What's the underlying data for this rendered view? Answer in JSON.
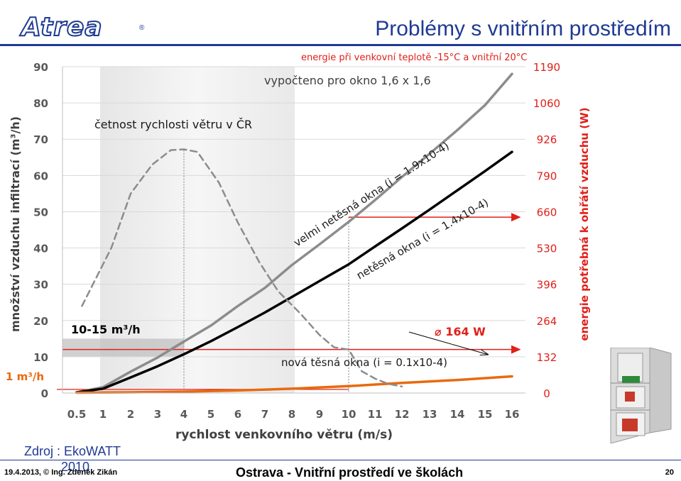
{
  "header": {
    "logo_text": "Atrea",
    "logo_mark": "®",
    "title": "Problémy s vnitřním prostředím"
  },
  "footer": {
    "source_line1": "Zdroj : EkoWATT",
    "source_line2": "2010",
    "date_author": "19.4.2013, © Ing. Zdeněk Zikán",
    "center": "Ostrava - Vnitřní prostředí ve školách",
    "page": "20"
  },
  "chart_data": {
    "type": "line",
    "title": "energie při venkovní teplotě -15°C a vnitřní 20°C",
    "subtitle": "vypočteno pro okno 1,6 x 1,6",
    "xlabel": "rychlost venkovního větru (m/s)",
    "ylabel": "množství vzduchu infiltrací (m³/h)",
    "y2label": "energie potřebná k ohřátí vzduchu (W)",
    "xlim": [
      0.5,
      16
    ],
    "ylim": [
      0,
      90
    ],
    "x_ticks": [
      "0.5",
      "1",
      "2",
      "3",
      "4",
      "5",
      "6",
      "7",
      "8",
      "9",
      "10",
      "11",
      "12",
      "13",
      "14",
      "15",
      "16"
    ],
    "y_ticks": [
      "0",
      "10",
      "20",
      "30",
      "40",
      "50",
      "60",
      "70",
      "80",
      "90"
    ],
    "y2_ticks": [
      "0",
      "132",
      "264",
      "396",
      "530",
      "660",
      "790",
      "926",
      "1060",
      "1190"
    ],
    "series": [
      {
        "name": "velmi netěsná okna (i = 1.9x10-4)",
        "color": "#8c8c8c",
        "style": "solid",
        "x": [
          0.5,
          1,
          2,
          3,
          4,
          5,
          6,
          7,
          8,
          9,
          10,
          11,
          12,
          13,
          14,
          15,
          16
        ],
        "y": [
          0.2,
          1.6,
          5.9,
          9.8,
          14.2,
          18.6,
          24.0,
          29.0,
          35.3,
          41.0,
          47.2,
          53.2,
          59.6,
          66.0,
          72.5,
          79.4,
          88.0
        ]
      },
      {
        "name": "netěsná okna (i = 1.4x10-4)",
        "color": "#000000",
        "style": "solid",
        "x": [
          0.5,
          1,
          2,
          3,
          4,
          5,
          6,
          7,
          8,
          9,
          10,
          11,
          12,
          13,
          14,
          15,
          16
        ],
        "y": [
          0.2,
          1.2,
          4.3,
          7.4,
          10.7,
          14.3,
          18.2,
          22.2,
          26.5,
          30.9,
          35.5,
          40.4,
          45.4,
          50.6,
          55.9,
          61.2,
          66.5
        ]
      },
      {
        "name": "nová těsná okna (i = 0.1x10-4)",
        "color": "#e86a10",
        "style": "solid",
        "x": [
          0.5,
          2,
          4,
          6,
          8,
          10,
          12,
          14,
          16
        ],
        "y": [
          0.1,
          0.2,
          0.4,
          0.7,
          1.2,
          1.9,
          2.8,
          3.6,
          4.6
        ]
      },
      {
        "name": "četnost rychlosti větru v ČR",
        "color": "#8c8c8c",
        "style": "dashed",
        "x": [
          0.6,
          1.3,
          2,
          2.8,
          3.5,
          4,
          4.5,
          5.3,
          6,
          6.8,
          7.5,
          8.3,
          9,
          9.5,
          10,
          10.5,
          11,
          11.5,
          12
        ],
        "y": [
          24,
          40,
          55,
          63,
          67,
          67.2,
          66.5,
          58,
          47,
          36,
          28,
          22,
          16,
          12.6,
          12,
          6,
          4,
          2.5,
          1.8
        ]
      }
    ],
    "annotations": [
      {
        "text": "10-15 m³/h"
      },
      {
        "text": "1 m³/h"
      },
      {
        "text": "⌀ 164 W"
      },
      {
        "text": "velmi netěsná okna (i = 1.9x10-4)"
      },
      {
        "text": "netěsná okna (i = 1.4x10-4)"
      },
      {
        "text": "nová těsná okna (i = 0.1x10-4)"
      }
    ],
    "grid": "y",
    "shaded_band": {
      "x_from": 1,
      "x_to": 8
    }
  }
}
